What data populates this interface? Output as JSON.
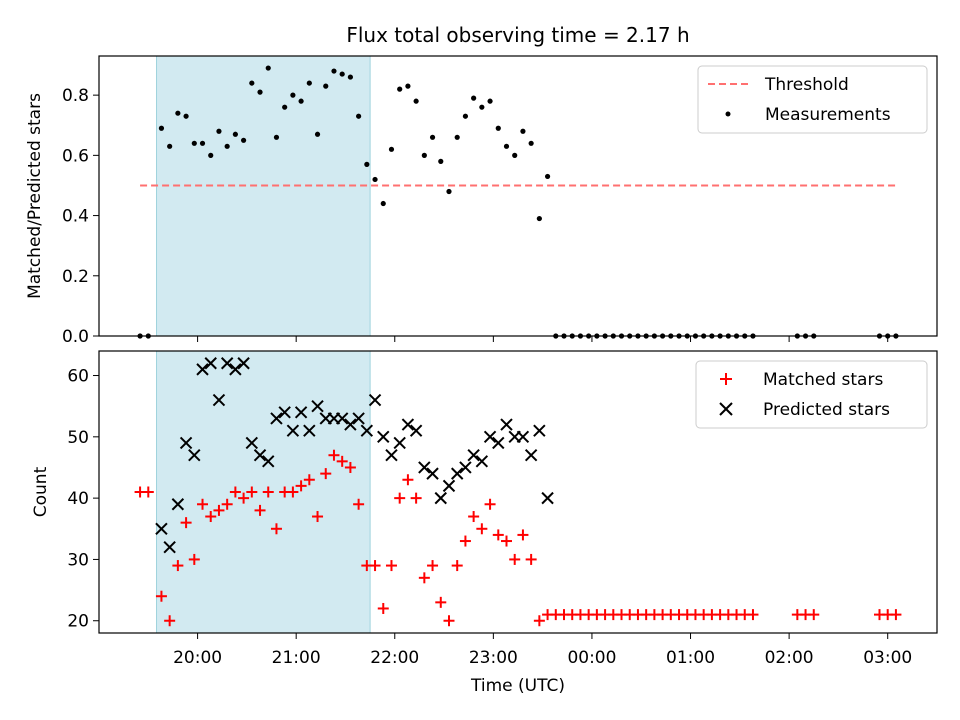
{
  "figure": {
    "title": "Flux total observing time = 2.17 h",
    "xlabel": "Time (UTC)"
  },
  "colors": {
    "threshold": "#ff7070",
    "measurements": "#000000",
    "matched": "#ff0000",
    "predicted": "#000000",
    "shade": "#add8e6"
  },
  "chart_data": [
    {
      "type": "scatter",
      "ylabel": "Matched/Predicted stars",
      "ylim": [
        0,
        0.93
      ],
      "yticks": [
        0.0,
        0.2,
        0.4,
        0.6,
        0.8
      ],
      "ytick_labels": [
        "0.0",
        "0.2",
        "0.4",
        "0.6",
        "0.8"
      ],
      "legend": {
        "position": "top-right",
        "entries": [
          "Threshold",
          "Measurements"
        ]
      },
      "shaded_interval": [
        "19:35",
        "21:45"
      ],
      "threshold": {
        "name": "Threshold",
        "y": 0.5,
        "x_range": [
          "19:25",
          "03:05"
        ]
      },
      "series": [
        {
          "name": "Measurements",
          "x": [
            "19:25",
            "19:30",
            "19:38",
            "19:43",
            "19:48",
            "19:53",
            "19:58",
            "20:03",
            "20:08",
            "20:13",
            "20:18",
            "20:23",
            "20:28",
            "20:33",
            "20:38",
            "20:43",
            "20:48",
            "20:53",
            "20:58",
            "21:03",
            "21:08",
            "21:13",
            "21:18",
            "21:23",
            "21:28",
            "21:33",
            "21:38",
            "21:43",
            "21:48",
            "21:53",
            "21:58",
            "22:03",
            "22:08",
            "22:13",
            "22:18",
            "22:23",
            "22:28",
            "22:33",
            "22:38",
            "22:43",
            "22:48",
            "22:53",
            "22:58",
            "23:03",
            "23:08",
            "23:13",
            "23:18",
            "23:23",
            "23:28",
            "23:33",
            "23:38",
            "23:43",
            "23:48",
            "23:53",
            "23:58",
            "00:03",
            "00:08",
            "00:13",
            "00:18",
            "00:23",
            "00:28",
            "00:33",
            "00:38",
            "00:43",
            "00:48",
            "00:53",
            "00:58",
            "01:03",
            "01:08",
            "01:13",
            "01:18",
            "01:23",
            "01:28",
            "01:33",
            "01:38",
            "02:05",
            "02:10",
            "02:15",
            "02:55",
            "03:00",
            "03:05"
          ],
          "y": [
            0,
            0,
            0.69,
            0.63,
            0.74,
            0.73,
            0.64,
            0.64,
            0.6,
            0.68,
            0.63,
            0.67,
            0.65,
            0.84,
            0.81,
            0.89,
            0.66,
            0.76,
            0.8,
            0.78,
            0.84,
            0.67,
            0.83,
            0.88,
            0.87,
            0.86,
            0.73,
            0.57,
            0.52,
            0.44,
            0.62,
            0.82,
            0.83,
            0.78,
            0.6,
            0.66,
            0.58,
            0.48,
            0.66,
            0.73,
            0.79,
            0.76,
            0.78,
            0.69,
            0.63,
            0.6,
            0.68,
            0.64,
            0.39,
            0.53,
            0,
            0,
            0,
            0,
            0,
            0,
            0,
            0,
            0,
            0,
            0,
            0,
            0,
            0,
            0,
            0,
            0,
            0,
            0,
            0,
            0,
            0,
            0,
            0,
            0,
            0,
            0,
            0,
            0,
            0,
            0
          ]
        }
      ]
    },
    {
      "type": "scatter",
      "ylabel": "Count",
      "ylim": [
        18,
        64
      ],
      "yticks": [
        20,
        30,
        40,
        50,
        60
      ],
      "ytick_labels": [
        "20",
        "30",
        "40",
        "50",
        "60"
      ],
      "xticks": [
        "20:00",
        "21:00",
        "22:00",
        "23:00",
        "00:00",
        "01:00",
        "02:00",
        "03:00"
      ],
      "legend": {
        "position": "top-right",
        "entries": [
          "Matched stars",
          "Predicted stars"
        ]
      },
      "shaded_interval": [
        "19:35",
        "21:45"
      ],
      "series": [
        {
          "name": "Matched stars",
          "marker": "+",
          "x": [
            "19:25",
            "19:30",
            "19:38",
            "19:43",
            "19:48",
            "19:53",
            "19:58",
            "20:03",
            "20:08",
            "20:13",
            "20:18",
            "20:23",
            "20:28",
            "20:33",
            "20:38",
            "20:43",
            "20:48",
            "20:53",
            "20:58",
            "21:03",
            "21:08",
            "21:13",
            "21:18",
            "21:23",
            "21:28",
            "21:33",
            "21:38",
            "21:43",
            "21:48",
            "21:53",
            "21:58",
            "22:03",
            "22:08",
            "22:13",
            "22:18",
            "22:23",
            "22:28",
            "22:33",
            "22:38",
            "22:43",
            "22:48",
            "22:53",
            "22:58",
            "23:03",
            "23:08",
            "23:13",
            "23:18",
            "23:23",
            "23:28",
            "23:33",
            "23:38",
            "23:43",
            "23:48",
            "23:53",
            "23:58",
            "00:03",
            "00:08",
            "00:13",
            "00:18",
            "00:23",
            "00:28",
            "00:33",
            "00:38",
            "00:43",
            "00:48",
            "00:53",
            "00:58",
            "01:03",
            "01:08",
            "01:13",
            "01:18",
            "01:23",
            "01:28",
            "01:33",
            "01:38",
            "02:05",
            "02:10",
            "02:15",
            "02:55",
            "03:00",
            "03:05"
          ],
          "y": [
            41,
            41,
            24,
            20,
            29,
            36,
            30,
            39,
            37,
            38,
            39,
            41,
            40,
            41,
            38,
            41,
            35,
            41,
            41,
            42,
            43,
            37,
            44,
            47,
            46,
            45,
            39,
            29,
            29,
            22,
            29,
            40,
            43,
            40,
            27,
            29,
            23,
            20,
            29,
            33,
            37,
            35,
            39,
            34,
            33,
            30,
            34,
            30,
            20,
            21,
            21,
            21,
            21,
            21,
            21,
            21,
            21,
            21,
            21,
            21,
            21,
            21,
            21,
            21,
            21,
            21,
            21,
            21,
            21,
            21,
            21,
            21,
            21,
            21,
            21,
            21,
            21,
            21,
            21,
            21,
            21
          ]
        },
        {
          "name": "Predicted stars",
          "marker": "x",
          "x": [
            "19:38",
            "19:43",
            "19:48",
            "19:53",
            "19:58",
            "20:03",
            "20:08",
            "20:13",
            "20:18",
            "20:23",
            "20:28",
            "20:33",
            "20:38",
            "20:43",
            "20:48",
            "20:53",
            "20:58",
            "21:03",
            "21:08",
            "21:13",
            "21:18",
            "21:23",
            "21:28",
            "21:33",
            "21:38",
            "21:43",
            "21:48",
            "21:53",
            "21:58",
            "22:03",
            "22:08",
            "22:13",
            "22:18",
            "22:23",
            "22:28",
            "22:33",
            "22:38",
            "22:43",
            "22:48",
            "22:53",
            "22:58",
            "23:03",
            "23:08",
            "23:13",
            "23:18",
            "23:23",
            "23:28",
            "23:33"
          ],
          "y": [
            35,
            32,
            39,
            49,
            47,
            61,
            62,
            56,
            62,
            61,
            62,
            49,
            47,
            46,
            53,
            54,
            51,
            54,
            51,
            55,
            53,
            53,
            53,
            52,
            53,
            51,
            56,
            50,
            47,
            49,
            52,
            51,
            45,
            44,
            40,
            42,
            44,
            45,
            47,
            46,
            50,
            49,
            52,
            50,
            50,
            47,
            51,
            40
          ]
        }
      ]
    }
  ]
}
